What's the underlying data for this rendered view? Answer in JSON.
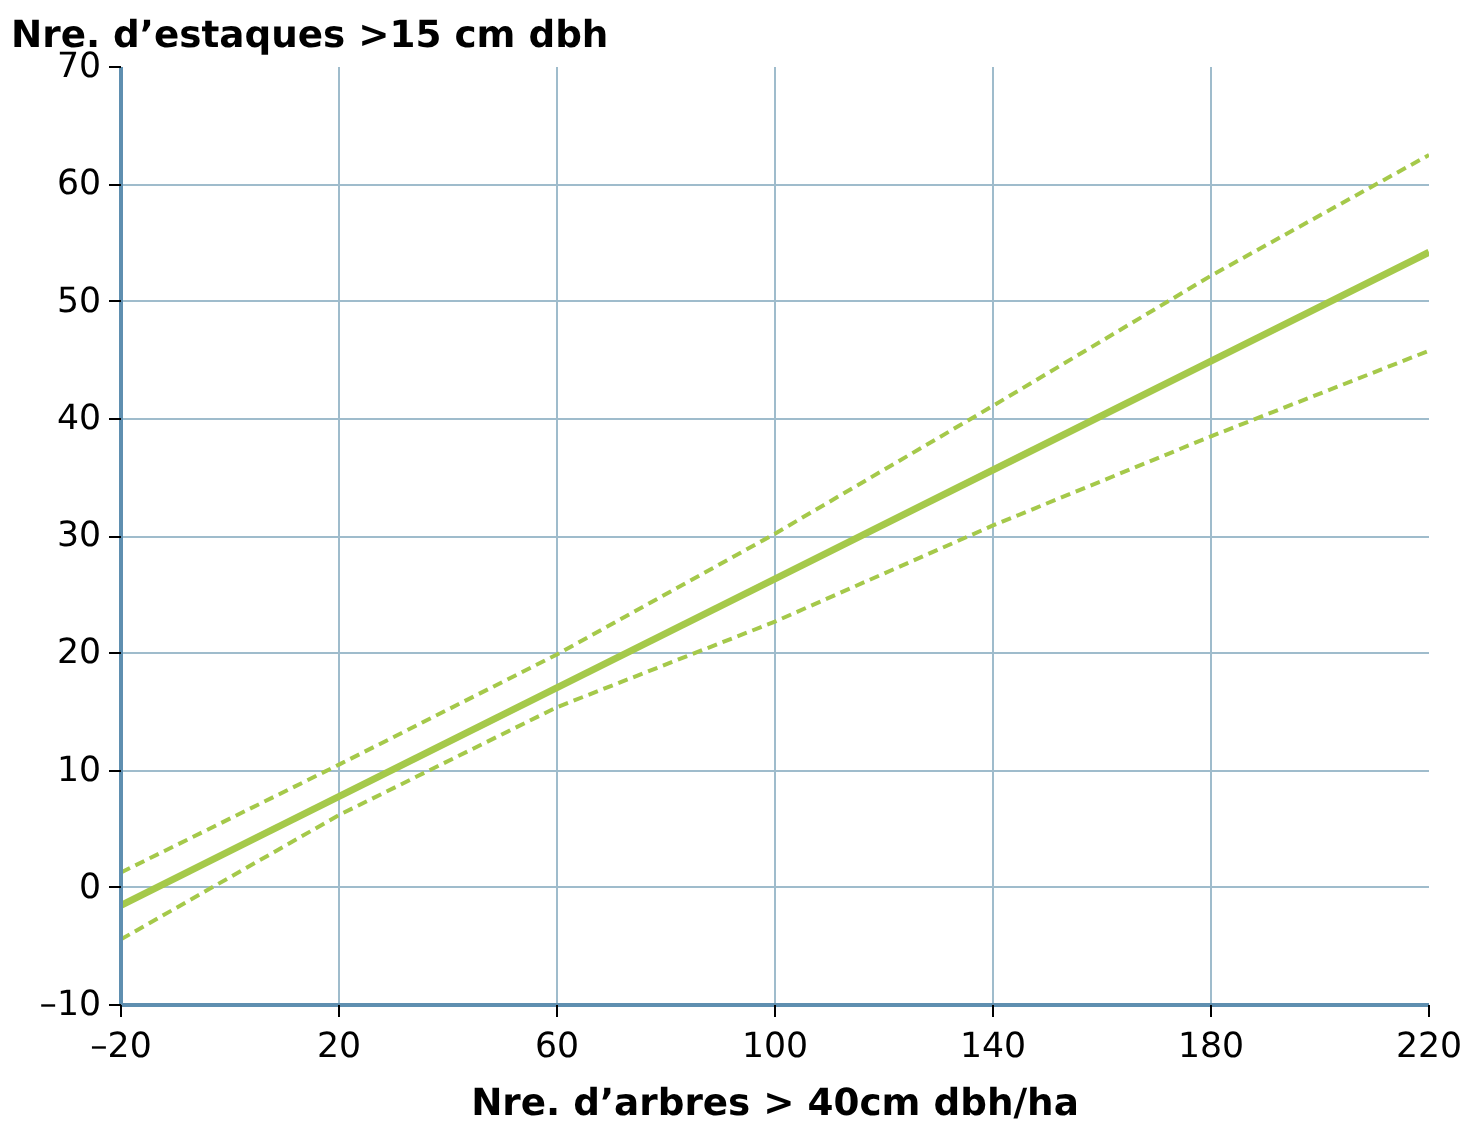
{
  "chart_data": {
    "type": "line",
    "ylabel": "Nre. d’estaques >15 cm dbh",
    "xlabel": "Nre. d’arbres > 40cm dbh/ha",
    "series": [
      {
        "color": "#a5c94a",
        "x": [
          -20,
          220
        ],
        "values": [
          -1.5,
          54.2
        ],
        "line_style": "solid"
      },
      {
        "color": "#a5c94a",
        "x": [
          -20,
          20,
          60,
          100,
          140,
          180,
          220
        ],
        "values": [
          1.3,
          10.5,
          19.9,
          30.2,
          41.1,
          52.2,
          62.5
        ],
        "line_style": "dashed"
      },
      {
        "color": "#a5c94a",
        "x": [
          -20,
          20,
          60,
          100,
          140,
          180,
          220
        ],
        "values": [
          -4.4,
          6.2,
          15.4,
          22.7,
          30.9,
          38.5,
          45.8
        ],
        "line_style": "dashed"
      }
    ],
    "xlim": [
      -20,
      220
    ],
    "xticks": [
      {
        "value": -20,
        "label": "–20"
      },
      20,
      60,
      100,
      140,
      180,
      220
    ],
    "ylim": [
      -10,
      70
    ],
    "yticks": [
      {
        "value": -10,
        "label": "–10"
      },
      0,
      10,
      20,
      30,
      40,
      50,
      60,
      70
    ],
    "grid": true
  }
}
